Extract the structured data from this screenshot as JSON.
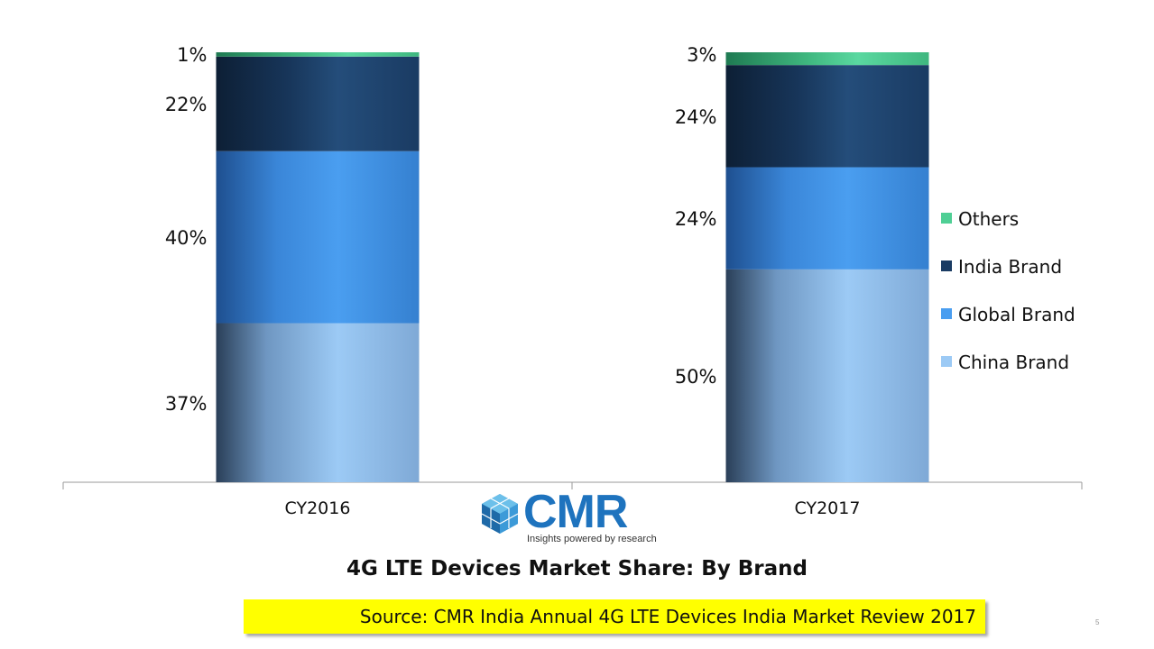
{
  "chart_data": {
    "type": "bar",
    "stacked": true,
    "normalized": true,
    "categories": [
      "CY2016",
      "CY2017"
    ],
    "series": [
      {
        "name": "China Brand",
        "values": [
          37,
          50
        ],
        "labels": [
          "37%",
          "50%"
        ],
        "color": "#9ccaf5"
      },
      {
        "name": "Global Brand",
        "values": [
          40,
          24
        ],
        "labels": [
          "40%",
          "24%"
        ],
        "color": "#4a9ef0"
      },
      {
        "name": "India Brand",
        "values": [
          22,
          24
        ],
        "labels": [
          "22%",
          "24%"
        ],
        "color": "#1a3b63"
      },
      {
        "name": "Others",
        "values": [
          1,
          3
        ],
        "labels": [
          "1%",
          "3%"
        ],
        "color": "#4fcf95"
      }
    ],
    "legend_order": [
      "Others",
      "India Brand",
      "Global Brand",
      "China Brand"
    ],
    "legend_position": "right",
    "ylim": [
      0,
      100
    ],
    "grid": false
  },
  "logo": {
    "name": "CMR",
    "tagline": "Insights powered by research",
    "icon": "cube-cluster-icon",
    "color": "#1e73be"
  },
  "caption": "4G LTE Devices Market Share:  By Brand",
  "source": "Source:  CMR India Annual 4G LTE Devices India Market Review 2017",
  "slide_number": "5"
}
